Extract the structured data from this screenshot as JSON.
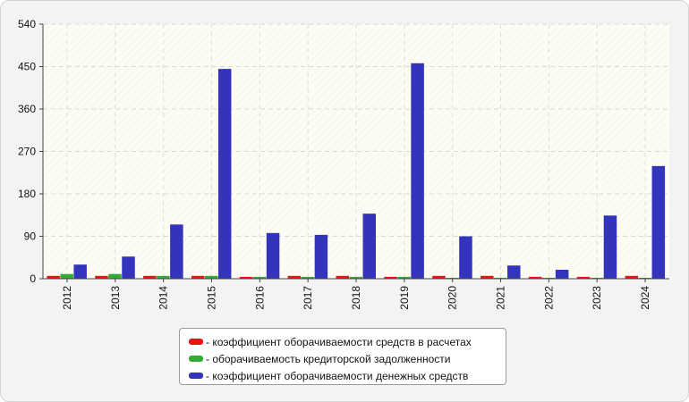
{
  "chart_data": {
    "type": "bar",
    "categories": [
      "2012",
      "2013",
      "2014",
      "2015",
      "2016",
      "2017",
      "2018",
      "2019",
      "2020",
      "2021",
      "2022",
      "2023",
      "2024"
    ],
    "series": [
      {
        "name": "- коэффициент оборачиваемости средств в расчетах",
        "color": "#ee1111",
        "values": [
          6,
          6,
          6,
          6,
          4,
          6,
          6,
          4,
          6,
          6,
          4,
          4,
          6
        ]
      },
      {
        "name": "- оборачиваемость кредиторской задолженности",
        "color": "#33aa33",
        "values": [
          10,
          10,
          6,
          6,
          4,
          4,
          4,
          4,
          2,
          2,
          2,
          2,
          2
        ]
      },
      {
        "name": "- коэффициент оборачиваемости денежных средств",
        "color": "#3333bb",
        "values": [
          30,
          47,
          115,
          445,
          97,
          93,
          138,
          457,
          90,
          28,
          19,
          134,
          239
        ]
      }
    ],
    "yticks": [
      "0",
      "90",
      "180",
      "270",
      "360",
      "450",
      "540"
    ],
    "ylim": [
      0,
      540
    ],
    "grid": true,
    "legend_position": "bottom-center"
  }
}
